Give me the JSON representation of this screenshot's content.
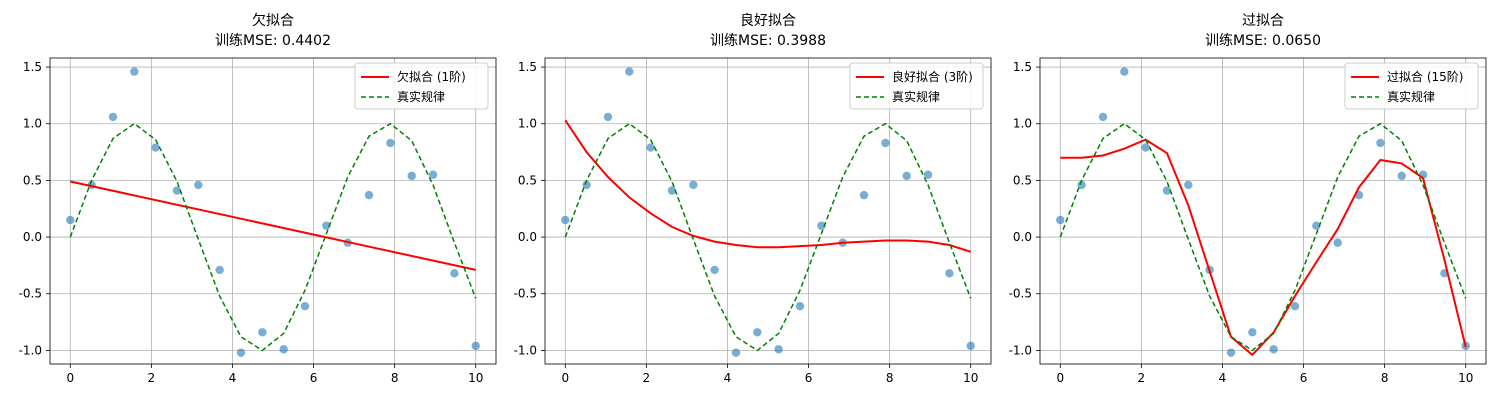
{
  "chart_data": [
    {
      "type": "line",
      "title": "欠拟合",
      "subtitle": "训练MSE: 0.4402",
      "xlabel": "",
      "ylabel": "",
      "xlim": [
        -0.5,
        10.5
      ],
      "ylim": [
        -1.12,
        1.58
      ],
      "xticks": [
        0,
        2,
        4,
        6,
        8,
        10
      ],
      "yticks": [
        1.5,
        1.0,
        0.5,
        0.0,
        -0.5,
        -1.0
      ],
      "ytick_labels": [
        "1.5",
        "1.0",
        "0.5",
        "0.0",
        "-0.5",
        "-1.0"
      ],
      "grid": true,
      "legend_position": "top-right",
      "scatter": {
        "x": [
          0,
          0.526,
          1.053,
          1.579,
          2.105,
          2.632,
          3.158,
          3.684,
          4.211,
          4.737,
          5.263,
          5.789,
          6.316,
          6.842,
          7.368,
          7.895,
          8.421,
          8.947,
          9.474,
          10
        ],
        "y": [
          0.15,
          0.46,
          1.06,
          1.46,
          0.79,
          0.41,
          0.46,
          -0.29,
          -1.02,
          -0.84,
          -0.99,
          -0.61,
          0.1,
          -0.05,
          0.37,
          0.83,
          0.54,
          0.55,
          -0.32,
          -0.96
        ],
        "color": "#1f77b4"
      },
      "series": [
        {
          "name": "欠拟合 (1阶)",
          "style": "solid",
          "color": "#ff0000",
          "x": [
            0,
            10
          ],
          "y": [
            0.49,
            -0.29
          ]
        },
        {
          "name": "真实规律",
          "style": "dashed",
          "color": "#008000",
          "x": [
            0,
            0.526,
            1.053,
            1.579,
            2.105,
            2.632,
            3.158,
            3.684,
            4.211,
            4.737,
            5.263,
            5.789,
            6.316,
            6.842,
            7.368,
            7.895,
            8.421,
            8.947,
            9.474,
            10
          ],
          "y": [
            0,
            0.5,
            0.87,
            1.0,
            0.86,
            0.49,
            -0.02,
            -0.52,
            -0.88,
            -1.0,
            -0.85,
            -0.47,
            0.03,
            0.53,
            0.89,
            1.0,
            0.85,
            0.46,
            -0.05,
            -0.54
          ]
        }
      ]
    },
    {
      "type": "line",
      "title": "良好拟合",
      "subtitle": "训练MSE: 0.3988",
      "xlabel": "",
      "ylabel": "",
      "xlim": [
        -0.5,
        10.5
      ],
      "ylim": [
        -1.12,
        1.58
      ],
      "xticks": [
        0,
        2,
        4,
        6,
        8,
        10
      ],
      "yticks": [
        1.5,
        1.0,
        0.5,
        0.0,
        -0.5,
        -1.0
      ],
      "ytick_labels": [
        "1.5",
        "1.0",
        "0.5",
        "0.0",
        "-0.5",
        "-1.0"
      ],
      "grid": true,
      "legend_position": "top-right",
      "scatter": {
        "x": [
          0,
          0.526,
          1.053,
          1.579,
          2.105,
          2.632,
          3.158,
          3.684,
          4.211,
          4.737,
          5.263,
          5.789,
          6.316,
          6.842,
          7.368,
          7.895,
          8.421,
          8.947,
          9.474,
          10
        ],
        "y": [
          0.15,
          0.46,
          1.06,
          1.46,
          0.79,
          0.41,
          0.46,
          -0.29,
          -1.02,
          -0.84,
          -0.99,
          -0.61,
          0.1,
          -0.05,
          0.37,
          0.83,
          0.54,
          0.55,
          -0.32,
          -0.96
        ],
        "color": "#1f77b4"
      },
      "series": [
        {
          "name": "良好拟合 (3阶)",
          "style": "solid",
          "color": "#ff0000",
          "x": [
            0,
            0.526,
            1.053,
            1.579,
            2.105,
            2.632,
            3.158,
            3.684,
            4.211,
            4.737,
            5.263,
            5.789,
            6.316,
            6.842,
            7.368,
            7.895,
            8.421,
            8.947,
            9.474,
            10
          ],
          "y": [
            1.03,
            0.75,
            0.53,
            0.35,
            0.21,
            0.09,
            0.01,
            -0.04,
            -0.07,
            -0.09,
            -0.09,
            -0.08,
            -0.07,
            -0.05,
            -0.04,
            -0.03,
            -0.03,
            -0.04,
            -0.07,
            -0.13
          ]
        },
        {
          "name": "真实规律",
          "style": "dashed",
          "color": "#008000",
          "x": [
            0,
            0.526,
            1.053,
            1.579,
            2.105,
            2.632,
            3.158,
            3.684,
            4.211,
            4.737,
            5.263,
            5.789,
            6.316,
            6.842,
            7.368,
            7.895,
            8.421,
            8.947,
            9.474,
            10
          ],
          "y": [
            0,
            0.5,
            0.87,
            1.0,
            0.86,
            0.49,
            -0.02,
            -0.52,
            -0.88,
            -1.0,
            -0.85,
            -0.47,
            0.03,
            0.53,
            0.89,
            1.0,
            0.85,
            0.46,
            -0.05,
            -0.54
          ]
        }
      ]
    },
    {
      "type": "line",
      "title": "过拟合",
      "subtitle": "训练MSE: 0.0650",
      "xlabel": "",
      "ylabel": "",
      "xlim": [
        -0.5,
        10.5
      ],
      "ylim": [
        -1.12,
        1.58
      ],
      "xticks": [
        0,
        2,
        4,
        6,
        8,
        10
      ],
      "yticks": [
        1.5,
        1.0,
        0.5,
        0.0,
        -0.5,
        -1.0
      ],
      "ytick_labels": [
        "1.5",
        "1.0",
        "0.5",
        "0.0",
        "-0.5",
        "-1.0"
      ],
      "grid": true,
      "legend_position": "top-right",
      "scatter": {
        "x": [
          0,
          0.526,
          1.053,
          1.579,
          2.105,
          2.632,
          3.158,
          3.684,
          4.211,
          4.737,
          5.263,
          5.789,
          6.316,
          6.842,
          7.368,
          7.895,
          8.421,
          8.947,
          9.474,
          10
        ],
        "y": [
          0.15,
          0.46,
          1.06,
          1.46,
          0.79,
          0.41,
          0.46,
          -0.29,
          -1.02,
          -0.84,
          -0.99,
          -0.61,
          0.1,
          -0.05,
          0.37,
          0.83,
          0.54,
          0.55,
          -0.32,
          -0.96
        ],
        "color": "#1f77b4"
      },
      "series": [
        {
          "name": "过拟合 (15阶)",
          "style": "solid",
          "color": "#ff0000",
          "x": [
            0,
            0.526,
            1.053,
            1.579,
            2.105,
            2.632,
            3.158,
            3.684,
            4.211,
            4.737,
            5.263,
            5.789,
            6.316,
            6.842,
            7.368,
            7.895,
            8.421,
            8.947,
            9.474,
            10
          ],
          "y": [
            0.7,
            0.7,
            0.72,
            0.78,
            0.86,
            0.74,
            0.28,
            -0.3,
            -0.88,
            -1.04,
            -0.84,
            -0.52,
            -0.22,
            0.07,
            0.44,
            0.68,
            0.65,
            0.52,
            -0.2,
            -0.97
          ]
        },
        {
          "name": "真实规律",
          "style": "dashed",
          "color": "#008000",
          "x": [
            0,
            0.526,
            1.053,
            1.579,
            2.105,
            2.632,
            3.158,
            3.684,
            4.211,
            4.737,
            5.263,
            5.789,
            6.316,
            6.842,
            7.368,
            7.895,
            8.421,
            8.947,
            9.474,
            10
          ],
          "y": [
            0,
            0.5,
            0.87,
            1.0,
            0.86,
            0.49,
            -0.02,
            -0.52,
            -0.88,
            -1.0,
            -0.85,
            -0.47,
            0.03,
            0.53,
            0.89,
            1.0,
            0.85,
            0.46,
            -0.05,
            -0.54
          ]
        }
      ]
    }
  ]
}
